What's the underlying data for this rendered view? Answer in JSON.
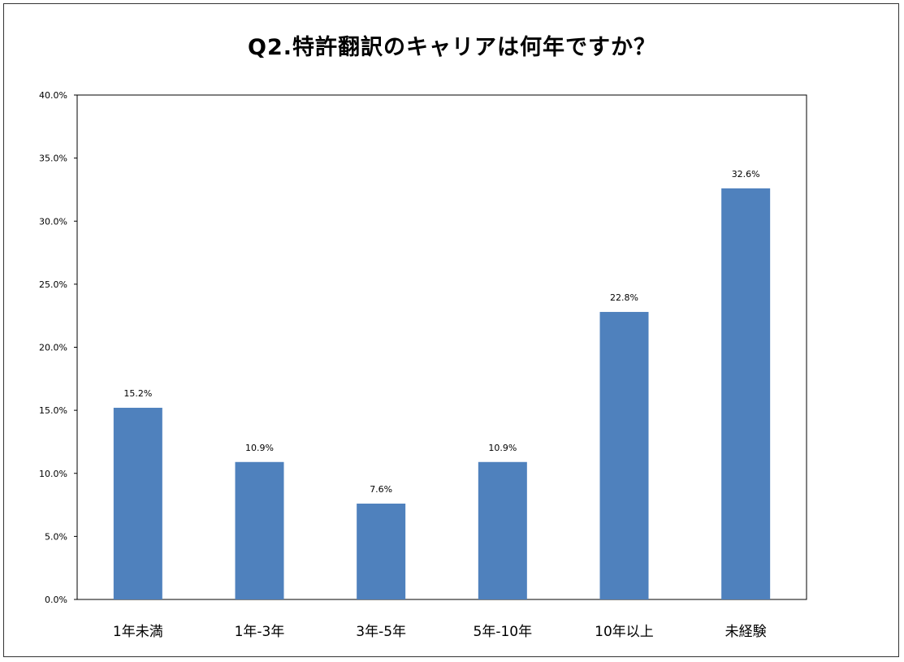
{
  "chart_data": {
    "type": "bar",
    "title": "Q2.特許翻訳のキャリアは何年ですか？",
    "xlabel": "",
    "ylabel": "",
    "categories": [
      "1年未満",
      "1年-3年",
      "3年-5年",
      "5年-10年",
      "10年以上",
      "未経験"
    ],
    "values": [
      15.2,
      10.9,
      7.6,
      10.9,
      22.8,
      32.6
    ],
    "data_labels": [
      "15.2%",
      "10.9%",
      "7.6%",
      "10.9%",
      "22.8%",
      "32.6%"
    ],
    "ylim": [
      0,
      40
    ],
    "yticks": [
      0,
      5,
      10,
      15,
      20,
      25,
      30,
      35,
      40
    ],
    "ytick_labels": [
      "0.0%",
      "5.0%",
      "10.0%",
      "15.0%",
      "20.0%",
      "25.0%",
      "30.0%",
      "35.0%",
      "40.0%"
    ],
    "grid": false,
    "legend": "none",
    "bar_color": "#4F81BD"
  }
}
